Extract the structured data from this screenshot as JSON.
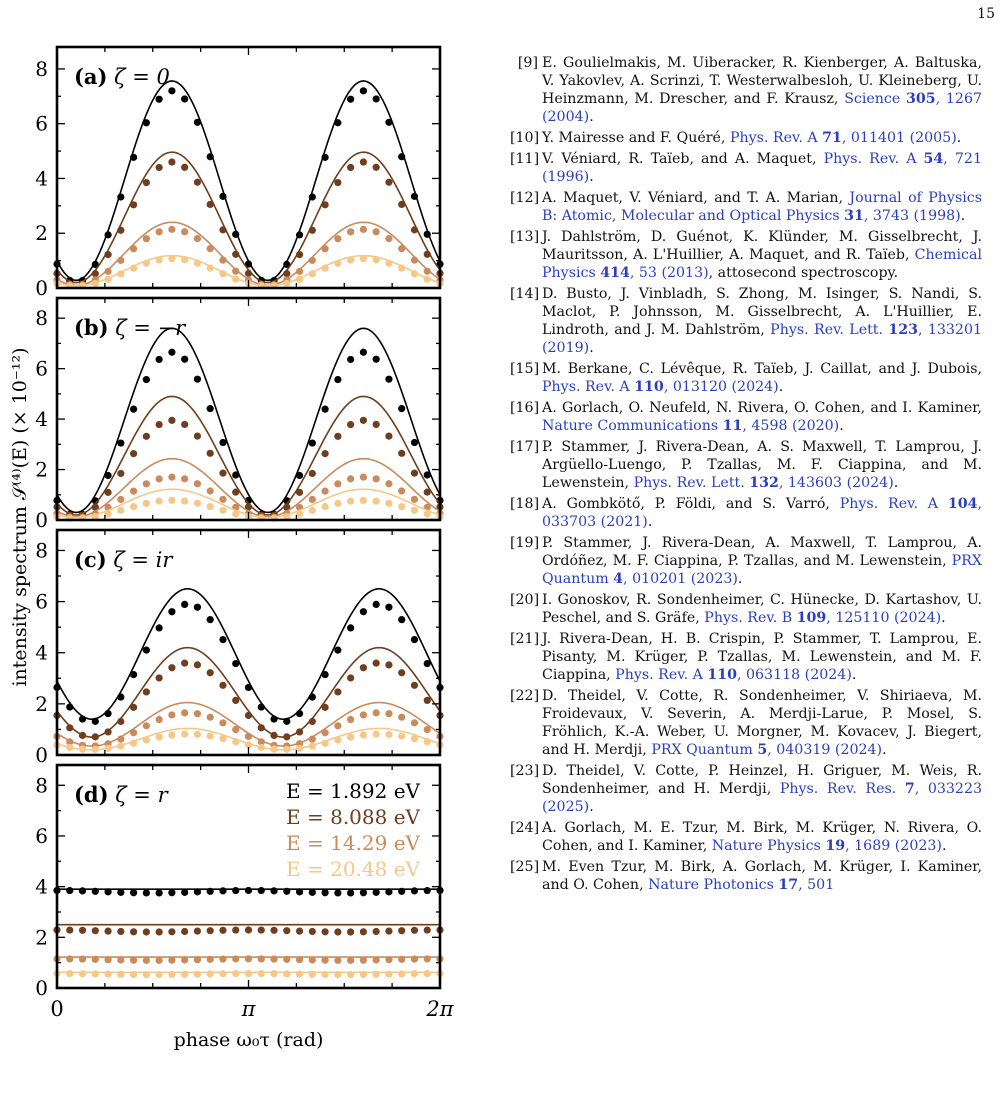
{
  "page_number": "15",
  "figure": {
    "ylabel": "intensity spectrum 𝒮⁽⁴⁾(E) (× 10⁻¹²)",
    "xlabel": "phase ω₀τ (rad)",
    "xticks": [
      "0",
      "π",
      "2π"
    ],
    "yticks": [
      "0",
      "2",
      "4",
      "6",
      "8"
    ],
    "legend": [
      "E = 1.892 eV",
      "E = 8.088 eV",
      "E = 14.29 eV",
      "E = 20.48 eV"
    ],
    "colors": [
      "#000000",
      "#6e3e1e",
      "#c98b5c",
      "#f6c888"
    ]
  },
  "chart_data": [
    {
      "type": "line",
      "panel": "(a)",
      "title": "ζ = 0",
      "x_range": [
        0,
        6.2832
      ],
      "ylim": [
        0,
        8.8
      ],
      "series": [
        {
          "name": "E = 1.892 eV",
          "line": {
            "A": 3.92,
            "B": 3.64,
            "p": 2.51
          },
          "dots": {
            "A": 3.7,
            "B": 3.5,
            "p": 2.51
          }
        },
        {
          "name": "E = 8.088 eV",
          "line": {
            "A": 2.58,
            "B": 2.38,
            "p": 2.51
          },
          "dots": {
            "A": 2.35,
            "B": 2.25,
            "p": 2.51
          }
        },
        {
          "name": "E = 14.29 eV",
          "line": {
            "A": 1.25,
            "B": 1.15,
            "p": 2.51
          },
          "dots": {
            "A": 1.12,
            "B": 1.02,
            "p": 2.51
          }
        },
        {
          "name": "E = 20.48 eV",
          "line": {
            "A": 0.63,
            "B": 0.55,
            "p": 2.51
          },
          "dots": {
            "A": 0.57,
            "B": 0.5,
            "p": 2.51
          }
        }
      ]
    },
    {
      "type": "line",
      "panel": "(b)",
      "title": "ζ = −r",
      "x_range": [
        0,
        6.2832
      ],
      "ylim": [
        0,
        8.8
      ],
      "series": [
        {
          "name": "E = 1.892 eV",
          "line": {
            "A": 3.95,
            "B": 3.65,
            "p": 2.51
          },
          "dots": {
            "A": 3.4,
            "B": 3.25,
            "p": 2.51
          }
        },
        {
          "name": "E = 8.088 eV",
          "line": {
            "A": 2.55,
            "B": 2.35,
            "p": 2.51
          },
          "dots": {
            "A": 2.05,
            "B": 1.9,
            "p": 2.51
          }
        },
        {
          "name": "E = 14.29 eV",
          "line": {
            "A": 1.28,
            "B": 1.15,
            "p": 2.51
          },
          "dots": {
            "A": 0.9,
            "B": 0.8,
            "p": 2.51
          }
        },
        {
          "name": "E = 20.48 eV",
          "line": {
            "A": 0.66,
            "B": 0.56,
            "p": 2.51
          },
          "dots": {
            "A": 0.42,
            "B": 0.36,
            "p": 2.51
          }
        }
      ]
    },
    {
      "type": "line",
      "panel": "(c)",
      "title": "ζ = ir",
      "x_range": [
        0,
        6.2832
      ],
      "ylim": [
        0,
        8.8
      ],
      "series": [
        {
          "name": "E = 1.892 eV",
          "line": {
            "A": 3.95,
            "B": 2.55,
            "p": 2.0
          },
          "dots": {
            "A": 3.6,
            "B": 2.3,
            "p": 2.0
          }
        },
        {
          "name": "E = 8.088 eV",
          "line": {
            "A": 2.45,
            "B": 1.75,
            "p": 2.0
          },
          "dots": {
            "A": 2.15,
            "B": 1.45,
            "p": 2.0
          }
        },
        {
          "name": "E = 14.29 eV",
          "line": {
            "A": 1.2,
            "B": 0.85,
            "p": 2.0
          },
          "dots": {
            "A": 1.0,
            "B": 0.65,
            "p": 2.0
          }
        },
        {
          "name": "E = 20.48 eV",
          "line": {
            "A": 0.62,
            "B": 0.42,
            "p": 2.0
          },
          "dots": {
            "A": 0.52,
            "B": 0.3,
            "p": 2.0
          }
        }
      ]
    },
    {
      "type": "line",
      "panel": "(d)",
      "title": "ζ = r",
      "x_range": [
        0,
        6.2832
      ],
      "ylim": [
        0,
        8.8
      ],
      "series": [
        {
          "name": "E = 1.892 eV",
          "line": {
            "A": 3.9,
            "B": 0.0,
            "p": 0
          },
          "dots": {
            "A": 3.8,
            "B": 0.05,
            "p": 0
          }
        },
        {
          "name": "E = 8.088 eV",
          "line": {
            "A": 2.5,
            "B": 0.0,
            "p": 0
          },
          "dots": {
            "A": 2.25,
            "B": 0.04,
            "p": 0
          }
        },
        {
          "name": "E = 14.29 eV",
          "line": {
            "A": 1.22,
            "B": 0.0,
            "p": 0
          },
          "dots": {
            "A": 1.12,
            "B": 0.03,
            "p": 0
          }
        },
        {
          "name": "E = 20.48 eV",
          "line": {
            "A": 0.62,
            "B": 0.0,
            "p": 0
          },
          "dots": {
            "A": 0.55,
            "B": 0.02,
            "p": 0
          }
        }
      ]
    }
  ],
  "references": [
    {
      "num": "[9]",
      "segments": [
        {
          "t": "E. Goulielmakis, M. Uiberacker, R. Kienberger, A. Baltuska, V. Yakovlev, A. Scrinzi, T. Westerwalbesloh, U. Kleineberg, U. Heinzmann, M. Drescher, and F. Krausz, "
        },
        {
          "t": "Science ",
          "link": true
        },
        {
          "t": "305",
          "link": true,
          "bold": true
        },
        {
          "t": ", 1267 (2004)",
          "link": true
        },
        {
          "t": "."
        }
      ]
    },
    {
      "num": "[10]",
      "segments": [
        {
          "t": "Y. Mairesse and F. Quéré, "
        },
        {
          "t": "Phys. Rev. A ",
          "link": true
        },
        {
          "t": "71",
          "link": true,
          "bold": true
        },
        {
          "t": ", 011401 (2005)",
          "link": true
        },
        {
          "t": "."
        }
      ]
    },
    {
      "num": "[11]",
      "segments": [
        {
          "t": "V. Véniard, R. Taïeb, and A. Maquet, "
        },
        {
          "t": "Phys. Rev. A ",
          "link": true
        },
        {
          "t": "54",
          "link": true,
          "bold": true
        },
        {
          "t": ", 721 (1996)",
          "link": true
        },
        {
          "t": "."
        }
      ]
    },
    {
      "num": "[12]",
      "segments": [
        {
          "t": "A. Maquet, V. Véniard, and T. A. Marian, "
        },
        {
          "t": "Journal of Physics B: Atomic, Molecular and Optical Physics ",
          "link": true
        },
        {
          "t": "31",
          "link": true,
          "bold": true
        },
        {
          "t": ", 3743 (1998)",
          "link": true
        },
        {
          "t": "."
        }
      ]
    },
    {
      "num": "[13]",
      "segments": [
        {
          "t": "J. Dahlström, D. Guénot, K. Klünder, M. Gisselbrecht, J. Mauritsson, A. L'Huillier, A. Maquet, and R. Taïeb, "
        },
        {
          "t": "Chemical Physics ",
          "link": true
        },
        {
          "t": "414",
          "link": true,
          "bold": true
        },
        {
          "t": ", 53 (2013)",
          "link": true
        },
        {
          "t": ", attosecond spectroscopy."
        }
      ]
    },
    {
      "num": "[14]",
      "segments": [
        {
          "t": "D. Busto, J. Vinbladh, S. Zhong, M. Isinger, S. Nandi, S. Maclot, P. Johnsson, M. Gisselbrecht, A. L'Huillier, E. Lindroth, and J. M. Dahlström, "
        },
        {
          "t": "Phys. Rev. Lett. ",
          "link": true
        },
        {
          "t": "123",
          "link": true,
          "bold": true
        },
        {
          "t": ", 133201 (2019)",
          "link": true
        },
        {
          "t": "."
        }
      ]
    },
    {
      "num": "[15]",
      "segments": [
        {
          "t": "M. Berkane, C. Lévêque, R. Taïeb, J. Caillat, and J. Dubois, "
        },
        {
          "t": "Phys. Rev. A ",
          "link": true
        },
        {
          "t": "110",
          "link": true,
          "bold": true
        },
        {
          "t": ", 013120 (2024)",
          "link": true
        },
        {
          "t": "."
        }
      ]
    },
    {
      "num": "[16]",
      "segments": [
        {
          "t": "A. Gorlach, O. Neufeld, N. Rivera, O. Cohen, and I. Kaminer, "
        },
        {
          "t": "Nature Communications ",
          "link": true
        },
        {
          "t": "11",
          "link": true,
          "bold": true
        },
        {
          "t": ", 4598 (2020)",
          "link": true
        },
        {
          "t": "."
        }
      ]
    },
    {
      "num": "[17]",
      "segments": [
        {
          "t": "P. Stammer, J. Rivera-Dean, A. S. Maxwell, T. Lamprou, J. Argüello-Luengo, P. Tzallas, M. F. Ciappina, and M. Lewenstein, "
        },
        {
          "t": "Phys. Rev. Lett. ",
          "link": true
        },
        {
          "t": "132",
          "link": true,
          "bold": true
        },
        {
          "t": ", 143603 (2024)",
          "link": true
        },
        {
          "t": "."
        }
      ]
    },
    {
      "num": "[18]",
      "segments": [
        {
          "t": "A. Gombkötő, P. Földi, and S. Varró, "
        },
        {
          "t": "Phys. Rev. A ",
          "link": true
        },
        {
          "t": "104",
          "link": true,
          "bold": true
        },
        {
          "t": ", 033703 (2021)",
          "link": true
        },
        {
          "t": "."
        }
      ]
    },
    {
      "num": "[19]",
      "segments": [
        {
          "t": "P. Stammer, J. Rivera-Dean, A. Maxwell, T. Lamprou, A. Ordóñez, M. F. Ciappina, P. Tzallas, and M. Lewenstein, "
        },
        {
          "t": "PRX Quantum ",
          "link": true
        },
        {
          "t": "4",
          "link": true,
          "bold": true
        },
        {
          "t": ", 010201 (2023)",
          "link": true
        },
        {
          "t": "."
        }
      ]
    },
    {
      "num": "[20]",
      "segments": [
        {
          "t": "I. Gonoskov, R. Sondenheimer, C. Hünecke, D. Kartashov, U. Peschel, and S. Gräfe, "
        },
        {
          "t": "Phys. Rev. B ",
          "link": true
        },
        {
          "t": "109",
          "link": true,
          "bold": true
        },
        {
          "t": ", 125110 (2024)",
          "link": true
        },
        {
          "t": "."
        }
      ]
    },
    {
      "num": "[21]",
      "segments": [
        {
          "t": "J. Rivera-Dean, H. B. Crispin, P. Stammer, T. Lamprou, E. Pisanty, M. Krüger, P. Tzallas, M. Lewenstein, and M. F. Ciappina, "
        },
        {
          "t": "Phys. Rev. A ",
          "link": true
        },
        {
          "t": "110",
          "link": true,
          "bold": true
        },
        {
          "t": ", 063118 (2024)",
          "link": true
        },
        {
          "t": "."
        }
      ]
    },
    {
      "num": "[22]",
      "segments": [
        {
          "t": "D. Theidel, V. Cotte, R. Sondenheimer, V. Shiriaeva, M. Froidevaux, V. Severin, A. Merdji-Larue, P. Mosel, S. Fröhlich, K.-A. Weber, U. Morgner, M. Kovacev, J. Biegert, and H. Merdji, "
        },
        {
          "t": "PRX Quantum ",
          "link": true
        },
        {
          "t": "5",
          "link": true,
          "bold": true
        },
        {
          "t": ", 040319 (2024)",
          "link": true
        },
        {
          "t": "."
        }
      ]
    },
    {
      "num": "[23]",
      "segments": [
        {
          "t": "D. Theidel, V. Cotte, P. Heinzel, H. Griguer, M. Weis, R. Sondenheimer, and H. Merdji, "
        },
        {
          "t": "Phys. Rev. Res. ",
          "link": true
        },
        {
          "t": "7",
          "link": true,
          "bold": true
        },
        {
          "t": ", 033223 (2025)",
          "link": true
        },
        {
          "t": "."
        }
      ]
    },
    {
      "num": "[24]",
      "segments": [
        {
          "t": "A. Gorlach, M. E. Tzur, M. Birk, M. Krüger, N. Rivera, O. Cohen, and I. Kaminer, "
        },
        {
          "t": "Nature Physics ",
          "link": true
        },
        {
          "t": "19",
          "link": true,
          "bold": true
        },
        {
          "t": ", 1689 (2023)",
          "link": true
        },
        {
          "t": "."
        }
      ]
    },
    {
      "num": "[25]",
      "segments": [
        {
          "t": "M. Even Tzur, M. Birk, A. Gorlach, M. Krüger, I. Kaminer, and O. Cohen, "
        },
        {
          "t": "Nature Photonics ",
          "link": true
        },
        {
          "t": "17",
          "link": true,
          "bold": true
        },
        {
          "t": ", 501",
          "link": true
        }
      ]
    }
  ]
}
